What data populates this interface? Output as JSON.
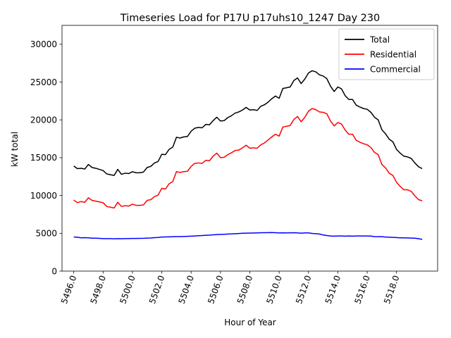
{
  "chart_data": {
    "type": "line",
    "title": "Timeseries Load for P17U p17uhs10_1247  Day 230",
    "xlabel": "Hour of Year",
    "ylabel": "kW total",
    "xlim": [
      5495.2,
      5520.8
    ],
    "ylim": [
      0,
      32500
    ],
    "x_ticks": [
      5496,
      5498,
      5500,
      5502,
      5504,
      5506,
      5508,
      5510,
      5512,
      5514,
      5516,
      5518
    ],
    "x_tick_labels": [
      "5496.0",
      "5498.0",
      "5500.0",
      "5502.0",
      "5504.0",
      "5506.0",
      "5508.0",
      "5510.0",
      "5512.0",
      "5514.0",
      "5516.0",
      "5518.0"
    ],
    "y_ticks": [
      0,
      5000,
      10000,
      15000,
      20000,
      25000,
      30000
    ],
    "y_tick_labels": [
      "0",
      "5000",
      "10000",
      "15000",
      "20000",
      "25000",
      "30000"
    ],
    "legend_position": "top-right",
    "x_start": 5496,
    "x_step": 0.25,
    "series": [
      {
        "name": "Total",
        "color": "#000000",
        "values": [
          13900,
          13550,
          13600,
          13500,
          14100,
          13700,
          13600,
          13450,
          13300,
          12850,
          12750,
          12650,
          13450,
          12800,
          12950,
          12900,
          13150,
          13000,
          13000,
          13100,
          13700,
          13850,
          14300,
          14500,
          15450,
          15400,
          16100,
          16400,
          17700,
          17600,
          17750,
          17800,
          18500,
          18900,
          19000,
          18950,
          19400,
          19350,
          19900,
          20350,
          19850,
          19900,
          20300,
          20550,
          20900,
          21050,
          21300,
          21650,
          21300,
          21350,
          21250,
          21800,
          22000,
          22350,
          22800,
          23150,
          22850,
          24150,
          24250,
          24350,
          25200,
          25550,
          24800,
          25400,
          26200,
          26500,
          26350,
          25950,
          25800,
          25450,
          24450,
          23750,
          24350,
          24100,
          23200,
          22700,
          22700,
          21950,
          21700,
          21500,
          21400,
          21000,
          20350,
          20000,
          18700,
          18150,
          17450,
          17100,
          16100,
          15600,
          15200,
          15100,
          14900,
          14300,
          13800,
          13550
        ]
      },
      {
        "name": "Residential",
        "color": "#ff0000",
        "values": [
          9400,
          9050,
          9200,
          9100,
          9700,
          9350,
          9250,
          9150,
          9050,
          8550,
          8450,
          8350,
          9100,
          8550,
          8650,
          8600,
          8850,
          8700,
          8700,
          8750,
          9350,
          9450,
          9850,
          10050,
          10950,
          10850,
          11550,
          11850,
          13150,
          13050,
          13150,
          13200,
          13850,
          14250,
          14300,
          14250,
          14650,
          14600,
          15200,
          15600,
          15000,
          15050,
          15400,
          15650,
          15950,
          16000,
          16300,
          16650,
          16250,
          16300,
          16250,
          16700,
          16950,
          17350,
          17750,
          18100,
          17850,
          19050,
          19150,
          19250,
          20050,
          20450,
          19750,
          20350,
          21150,
          21500,
          21350,
          21050,
          21000,
          20800,
          19850,
          19200,
          19650,
          19450,
          18650,
          18100,
          18100,
          17300,
          17050,
          16850,
          16700,
          16350,
          15700,
          15400,
          14100,
          13650,
          12950,
          12650,
          11750,
          11200,
          10750,
          10750,
          10550,
          9950,
          9450,
          9300
        ]
      },
      {
        "name": "Commercial",
        "color": "#0000ff",
        "values": [
          4500,
          4480,
          4400,
          4420,
          4400,
          4350,
          4350,
          4330,
          4300,
          4300,
          4300,
          4270,
          4300,
          4280,
          4300,
          4310,
          4320,
          4320,
          4330,
          4340,
          4360,
          4380,
          4420,
          4450,
          4500,
          4520,
          4530,
          4550,
          4560,
          4560,
          4590,
          4600,
          4620,
          4650,
          4680,
          4700,
          4740,
          4760,
          4800,
          4830,
          4850,
          4870,
          4900,
          4920,
          4950,
          4970,
          5000,
          5020,
          5030,
          5040,
          5050,
          5070,
          5080,
          5090,
          5100,
          5080,
          5050,
          5060,
          5050,
          5060,
          5080,
          5050,
          5020,
          5050,
          5050,
          4980,
          4950,
          4900,
          4780,
          4700,
          4650,
          4620,
          4650,
          4640,
          4620,
          4650,
          4620,
          4650,
          4650,
          4650,
          4640,
          4630,
          4560,
          4550,
          4550,
          4500,
          4480,
          4460,
          4430,
          4400,
          4400,
          4390,
          4370,
          4350,
          4280,
          4200
        ]
      }
    ]
  }
}
